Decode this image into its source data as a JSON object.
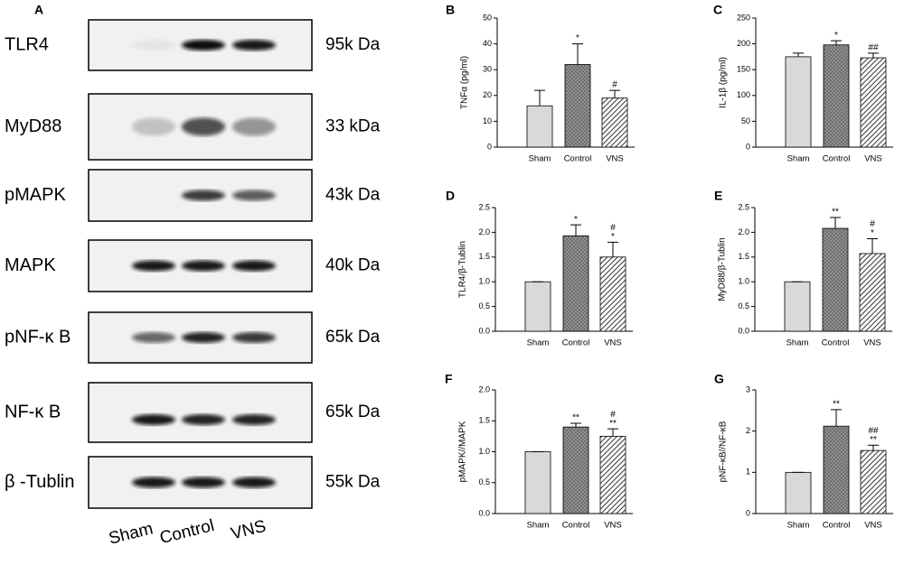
{
  "blot": {
    "panel": "A",
    "rows": [
      {
        "protein": "TLR4",
        "mass": "95k Da"
      },
      {
        "protein": "MyD88",
        "mass": "33 kDa"
      },
      {
        "protein": "pMAPK",
        "mass": "43k Da"
      },
      {
        "protein": "MAPK",
        "mass": "40k Da"
      },
      {
        "protein": "pNF-κ B",
        "mass": "65k Da"
      },
      {
        "protein": "NF-κ B",
        "mass": "65k Da"
      },
      {
        "protein": "β -Tublin",
        "mass": "55k Da"
      }
    ],
    "lanes": [
      "Sham",
      "Control",
      "VNS"
    ]
  },
  "chart_data": [
    {
      "type": "bar",
      "panel": "B",
      "ylabel": "TNFα (pg/ml)",
      "categories": [
        "Sham",
        "Control",
        "VNS"
      ],
      "values": [
        16,
        32,
        19
      ],
      "errors": [
        6,
        8,
        3
      ],
      "annotations": [
        null,
        [
          "*"
        ],
        [
          "#"
        ]
      ],
      "colors": [
        "#d9d9d9",
        "#808080",
        "#ffffff"
      ],
      "patterns": [
        "solid",
        "dots",
        "hatch"
      ],
      "ylim": [
        0,
        50
      ],
      "yticks": [
        0,
        10,
        20,
        30,
        40,
        50
      ]
    },
    {
      "type": "bar",
      "panel": "C",
      "ylabel": "IL-1β (pg/ml)",
      "categories": [
        "Sham",
        "Control",
        "VNS"
      ],
      "values": [
        175,
        198,
        173
      ],
      "errors": [
        7,
        8,
        9
      ],
      "annotations": [
        null,
        [
          "*"
        ],
        [
          "##"
        ]
      ],
      "colors": [
        "#d9d9d9",
        "#808080",
        "#ffffff"
      ],
      "patterns": [
        "solid",
        "dots",
        "hatch"
      ],
      "ylim": [
        0,
        250
      ],
      "yticks": [
        0,
        50,
        100,
        150,
        200,
        250
      ]
    },
    {
      "type": "bar",
      "panel": "D",
      "ylabel": "TLR4/β-Tublin",
      "categories": [
        "Sham",
        "Control",
        "VNS"
      ],
      "values": [
        1,
        1.93,
        1.5
      ],
      "errors": [
        0,
        0.22,
        0.3
      ],
      "annotations": [
        null,
        [
          "*"
        ],
        [
          "#",
          "*"
        ]
      ],
      "colors": [
        "#d9d9d9",
        "#808080",
        "#ffffff"
      ],
      "patterns": [
        "solid",
        "dots",
        "hatch"
      ],
      "ylim": [
        0,
        2.5
      ],
      "yticks": [
        {
          "value": 0,
          "label": "0.0"
        },
        0.5,
        {
          "value": 1,
          "label": "1.0"
        },
        1.5,
        {
          "value": 2,
          "label": "2.0"
        },
        2.5
      ]
    },
    {
      "type": "bar",
      "panel": "E",
      "ylabel": "MyD88/β-Tublin",
      "categories": [
        "Sham",
        "Control",
        "VNS"
      ],
      "values": [
        1,
        2.08,
        1.57
      ],
      "errors": [
        0,
        0.22,
        0.3
      ],
      "annotations": [
        null,
        [
          "**"
        ],
        [
          "#",
          "*"
        ]
      ],
      "colors": [
        "#d9d9d9",
        "#808080",
        "#ffffff"
      ],
      "patterns": [
        "solid",
        "dots",
        "hatch"
      ],
      "ylim": [
        0,
        2.5
      ],
      "yticks": [
        {
          "value": 0,
          "label": "0.0"
        },
        0.5,
        {
          "value": 1,
          "label": "1.0"
        },
        1.5,
        {
          "value": 2,
          "label": "2.0"
        },
        2.5
      ]
    },
    {
      "type": "bar",
      "panel": "F",
      "ylabel": "pMAPK//MAPK",
      "categories": [
        "Sham",
        "Control",
        "VNS"
      ],
      "values": [
        1,
        1.4,
        1.25
      ],
      "errors": [
        0,
        0.06,
        0.12
      ],
      "annotations": [
        null,
        [
          "**"
        ],
        [
          "#",
          "**"
        ]
      ],
      "colors": [
        "#d9d9d9",
        "#808080",
        "#ffffff"
      ],
      "patterns": [
        "solid",
        "dots",
        "hatch"
      ],
      "ylim": [
        0,
        2
      ],
      "yticks": [
        {
          "value": 0,
          "label": "0.0"
        },
        0.5,
        {
          "value": 1,
          "label": "1.0"
        },
        1.5,
        {
          "value": 2,
          "label": "2.0"
        }
      ]
    },
    {
      "type": "bar",
      "panel": "G",
      "ylabel": "pNF-κB//NF-κB",
      "categories": [
        "Sham",
        "Control",
        "VNS"
      ],
      "values": [
        1,
        2.12,
        1.53
      ],
      "errors": [
        0,
        0.4,
        0.13
      ],
      "annotations": [
        null,
        [
          "**"
        ],
        [
          "##",
          "**"
        ]
      ],
      "colors": [
        "#d9d9d9",
        "#808080",
        "#ffffff"
      ],
      "patterns": [
        "solid",
        "dots",
        "hatch"
      ],
      "ylim": [
        0,
        3
      ],
      "yticks": [
        0,
        1,
        2,
        3
      ]
    }
  ]
}
